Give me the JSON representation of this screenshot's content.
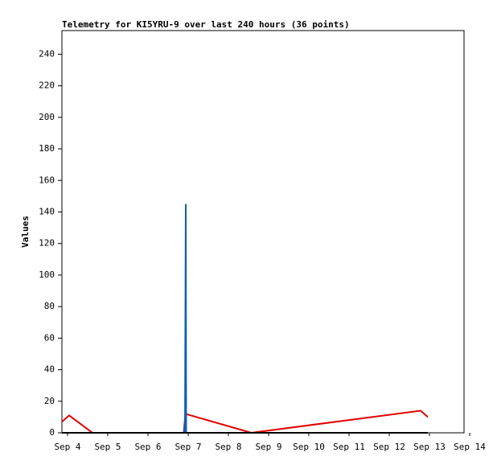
{
  "chart_data": {
    "type": "line",
    "title": "Telemetry for KI5YRU-9 over last 240 hours (36 points)",
    "y_label": "Values",
    "xlim": [
      3.86,
      13.86
    ],
    "xticks": [
      {
        "value": 4,
        "label": "Sep 4"
      },
      {
        "value": 5,
        "label": "Sep 5"
      },
      {
        "value": 6,
        "label": "Sep 6"
      },
      {
        "value": 7,
        "label": "Sep 7"
      },
      {
        "value": 8,
        "label": "Sep 8"
      },
      {
        "value": 9,
        "label": "Sep 9"
      },
      {
        "value": 10,
        "label": "Sep 10"
      },
      {
        "value": 11,
        "label": "Sep 11"
      },
      {
        "value": 12,
        "label": "Sep 12"
      },
      {
        "value": 13,
        "label": "Sep 13"
      },
      {
        "value": 14,
        "label": "Sep 14"
      }
    ],
    "ylim": [
      0,
      255
    ],
    "yticks": [
      0,
      20,
      40,
      60,
      80,
      100,
      120,
      140,
      160,
      180,
      200,
      220,
      240
    ],
    "series": [
      {
        "color": "#e00000",
        "x": [
          3.86,
          4.04,
          4.62,
          6.89,
          6.93,
          8.57,
          12.78,
          12.96
        ],
        "values": [
          7,
          11,
          0,
          0,
          12,
          0,
          14,
          10
        ]
      },
      {
        "color": "#1060b0",
        "x": [
          6.9,
          6.91,
          6.92,
          6.93,
          6.94,
          6.95
        ],
        "values": [
          0,
          5,
          0,
          72,
          145,
          0
        ]
      },
      {
        "color": "#000000",
        "x": [
          3.86,
          6.9,
          6.95,
          12.96
        ],
        "values": [
          0,
          0,
          0,
          0
        ]
      }
    ]
  }
}
